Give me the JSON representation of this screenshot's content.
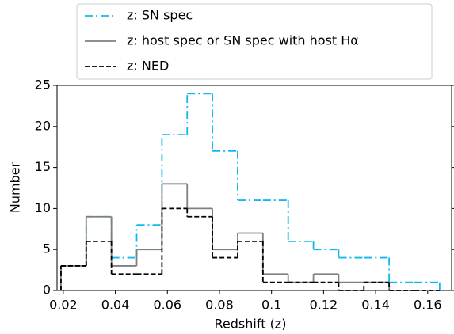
{
  "chart_data": {
    "type": "step-histogram",
    "x_label": "Redshift (z)",
    "y_label": "Number",
    "bins": [
      0.0191,
      0.0288,
      0.0385,
      0.0482,
      0.0579,
      0.0676,
      0.0773,
      0.087,
      0.0967,
      0.1064,
      0.1161,
      0.1258,
      0.1355,
      0.1452,
      0.1549,
      0.1646
    ],
    "series": [
      {
        "name": "z: SN spec",
        "color": "#12b9ec",
        "dash": "10 4 2 4",
        "values": [
          3,
          9,
          4,
          8,
          19,
          24,
          17,
          11,
          11,
          6,
          5,
          4,
          4,
          1,
          1
        ]
      },
      {
        "name": "z: host spec or SN spec with host Hα",
        "color": "#808080",
        "dash": "none",
        "values": [
          3,
          9,
          3,
          5,
          13,
          10,
          5,
          7,
          2,
          1,
          2,
          1,
          1,
          0,
          0
        ]
      },
      {
        "name": "z: NED",
        "color": "#000000",
        "dash": "6 3",
        "values": [
          3,
          6,
          2,
          2,
          10,
          9,
          4,
          6,
          1,
          1,
          1,
          0,
          1,
          0,
          0
        ]
      }
    ],
    "xlim": [
      0.0176,
      0.1692
    ],
    "ylim": [
      0,
      25
    ],
    "xticks": [
      0.02,
      0.04,
      0.06,
      0.08,
      0.1,
      0.12,
      0.14,
      0.16
    ],
    "yticks": [
      0,
      5,
      10,
      15,
      20,
      25
    ],
    "legend": "top"
  }
}
